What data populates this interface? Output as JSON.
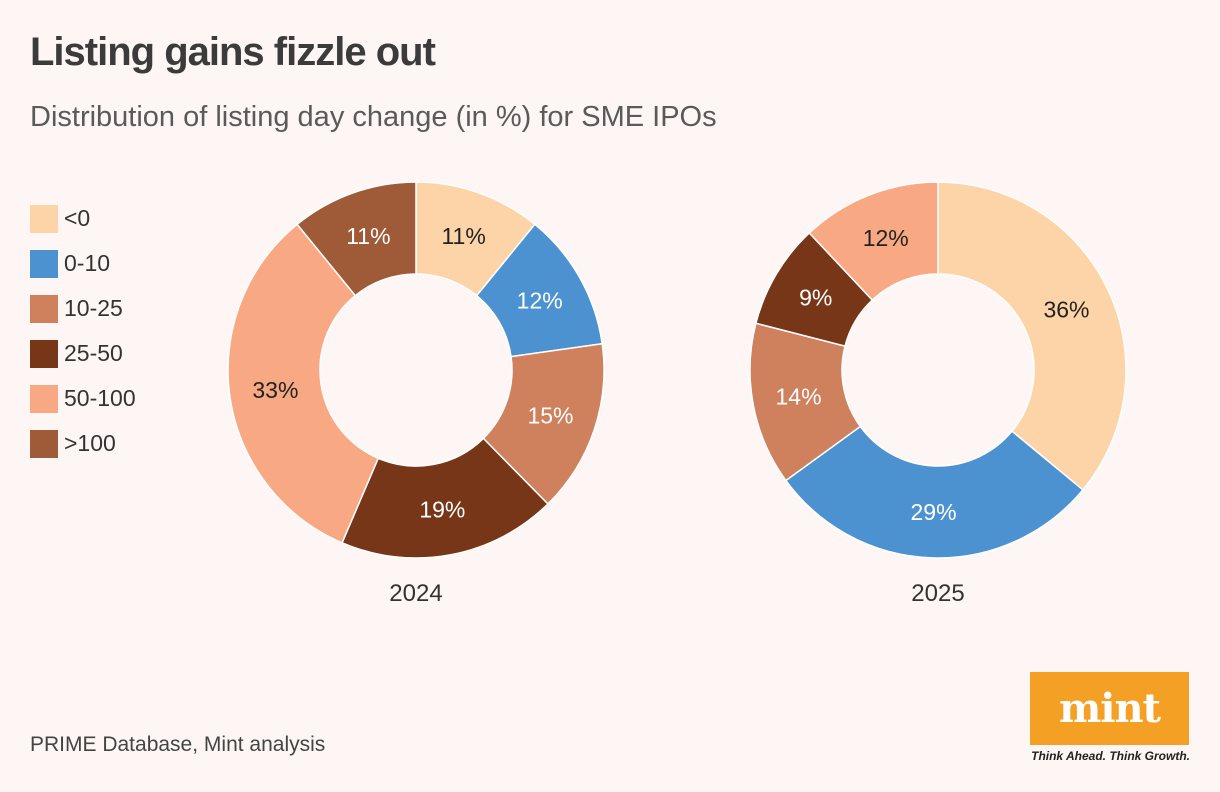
{
  "title": "Listing gains fizzle out",
  "subtitle": "Distribution of listing day change (in %) for SME IPOs",
  "source": "PRIME Database, Mint analysis",
  "logo": {
    "text": "mint",
    "tagline": "Think Ahead. Think Growth.",
    "color": "#f4a024"
  },
  "legend": [
    {
      "label": "<0",
      "color": "#fdd4a8"
    },
    {
      "label": "0-10",
      "color": "#4d92d0"
    },
    {
      "label": "10-25",
      "color": "#cf815d"
    },
    {
      "label": "25-50",
      "color": "#773618"
    },
    {
      "label": "50-100",
      "color": "#f8a984"
    },
    {
      "label": ">100",
      "color": "#9f5a38"
    }
  ],
  "chart_data": [
    {
      "type": "pie",
      "donut": true,
      "title": "2024",
      "categories": [
        "<0",
        "0-10",
        "10-25",
        "25-50",
        "50-100",
        ">100"
      ],
      "values": [
        11,
        12,
        15,
        19,
        33,
        11
      ],
      "labels": [
        "11%",
        "12%",
        "15%",
        "19%",
        "33%",
        "11%"
      ],
      "colors": [
        "#fdd4a8",
        "#4d92d0",
        "#cf815d",
        "#773618",
        "#f8a984",
        "#9f5a38"
      ],
      "label_colors": [
        "#222222",
        "#ffffff",
        "#ffffff",
        "#ffffff",
        "#222222",
        "#ffffff"
      ]
    },
    {
      "type": "pie",
      "donut": true,
      "title": "2025",
      "categories": [
        "<0",
        "0-10",
        "10-25",
        "25-50",
        "50-100"
      ],
      "values": [
        36,
        29,
        14,
        9,
        12
      ],
      "labels": [
        "36%",
        "29%",
        "14%",
        "9%",
        "12%"
      ],
      "colors": [
        "#fdd4a8",
        "#4d92d0",
        "#cf815d",
        "#773618",
        "#f8a984"
      ],
      "label_colors": [
        "#222222",
        "#ffffff",
        "#ffffff",
        "#ffffff",
        "#222222"
      ]
    }
  ]
}
